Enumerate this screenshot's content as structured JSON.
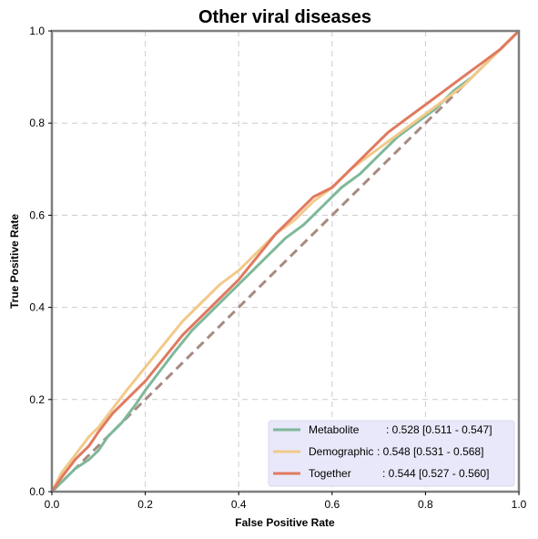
{
  "chart_data": {
    "type": "line",
    "title": "Other viral diseases",
    "xlabel": "False Positive Rate",
    "ylabel": "True Positive Rate",
    "xlim": [
      0,
      1
    ],
    "ylim": [
      0,
      1
    ],
    "xticks": [
      "0.0",
      "0.2",
      "0.4",
      "0.6",
      "0.8",
      "1.0"
    ],
    "yticks": [
      "0.0",
      "0.2",
      "0.4",
      "0.6",
      "0.8",
      "1.0"
    ],
    "grid": true,
    "legend_position": "lower-right",
    "series": [
      {
        "name": "Metabolite",
        "label_text": ": 0.528 [0.511 - 0.547]",
        "color": "#7fb89a",
        "points": [
          [
            0,
            0
          ],
          [
            0.02,
            0.02
          ],
          [
            0.05,
            0.05
          ],
          [
            0.08,
            0.07
          ],
          [
            0.1,
            0.09
          ],
          [
            0.12,
            0.12
          ],
          [
            0.15,
            0.15
          ],
          [
            0.18,
            0.19
          ],
          [
            0.2,
            0.22
          ],
          [
            0.23,
            0.26
          ],
          [
            0.26,
            0.3
          ],
          [
            0.3,
            0.35
          ],
          [
            0.34,
            0.39
          ],
          [
            0.38,
            0.43
          ],
          [
            0.42,
            0.47
          ],
          [
            0.46,
            0.51
          ],
          [
            0.5,
            0.55
          ],
          [
            0.54,
            0.58
          ],
          [
            0.58,
            0.62
          ],
          [
            0.62,
            0.66
          ],
          [
            0.66,
            0.69
          ],
          [
            0.7,
            0.73
          ],
          [
            0.74,
            0.77
          ],
          [
            0.78,
            0.8
          ],
          [
            0.82,
            0.83
          ],
          [
            0.86,
            0.87
          ],
          [
            0.9,
            0.9
          ],
          [
            0.94,
            0.94
          ],
          [
            0.97,
            0.97
          ],
          [
            1,
            1
          ]
        ]
      },
      {
        "name": "Demographic",
        "label_text": ": 0.548 [0.531 - 0.568]",
        "color": "#f2c98a",
        "points": [
          [
            0,
            0
          ],
          [
            0.02,
            0.04
          ],
          [
            0.05,
            0.08
          ],
          [
            0.08,
            0.12
          ],
          [
            0.1,
            0.14
          ],
          [
            0.13,
            0.18
          ],
          [
            0.16,
            0.22
          ],
          [
            0.2,
            0.27
          ],
          [
            0.24,
            0.32
          ],
          [
            0.28,
            0.37
          ],
          [
            0.32,
            0.41
          ],
          [
            0.36,
            0.45
          ],
          [
            0.4,
            0.48
          ],
          [
            0.44,
            0.52
          ],
          [
            0.48,
            0.56
          ],
          [
            0.52,
            0.59
          ],
          [
            0.56,
            0.63
          ],
          [
            0.6,
            0.66
          ],
          [
            0.64,
            0.7
          ],
          [
            0.68,
            0.73
          ],
          [
            0.72,
            0.76
          ],
          [
            0.76,
            0.79
          ],
          [
            0.8,
            0.82
          ],
          [
            0.84,
            0.85
          ],
          [
            0.88,
            0.88
          ],
          [
            0.92,
            0.92
          ],
          [
            0.96,
            0.96
          ],
          [
            1,
            1
          ]
        ]
      },
      {
        "name": "Together",
        "label_text": ": 0.544 [0.527 - 0.560]",
        "color": "#e07a5f",
        "points": [
          [
            0,
            0
          ],
          [
            0.02,
            0.03
          ],
          [
            0.05,
            0.07
          ],
          [
            0.08,
            0.1
          ],
          [
            0.1,
            0.13
          ],
          [
            0.13,
            0.17
          ],
          [
            0.16,
            0.2
          ],
          [
            0.2,
            0.24
          ],
          [
            0.24,
            0.29
          ],
          [
            0.28,
            0.34
          ],
          [
            0.32,
            0.38
          ],
          [
            0.36,
            0.42
          ],
          [
            0.4,
            0.46
          ],
          [
            0.44,
            0.51
          ],
          [
            0.48,
            0.56
          ],
          [
            0.52,
            0.6
          ],
          [
            0.56,
            0.64
          ],
          [
            0.6,
            0.66
          ],
          [
            0.64,
            0.7
          ],
          [
            0.68,
            0.74
          ],
          [
            0.72,
            0.78
          ],
          [
            0.76,
            0.81
          ],
          [
            0.8,
            0.84
          ],
          [
            0.84,
            0.87
          ],
          [
            0.88,
            0.9
          ],
          [
            0.92,
            0.93
          ],
          [
            0.96,
            0.96
          ],
          [
            1,
            1
          ]
        ]
      }
    ],
    "reference_line": {
      "points": [
        [
          0,
          0
        ],
        [
          1,
          1
        ]
      ],
      "color": "#a78a80",
      "style": "dashed"
    }
  }
}
